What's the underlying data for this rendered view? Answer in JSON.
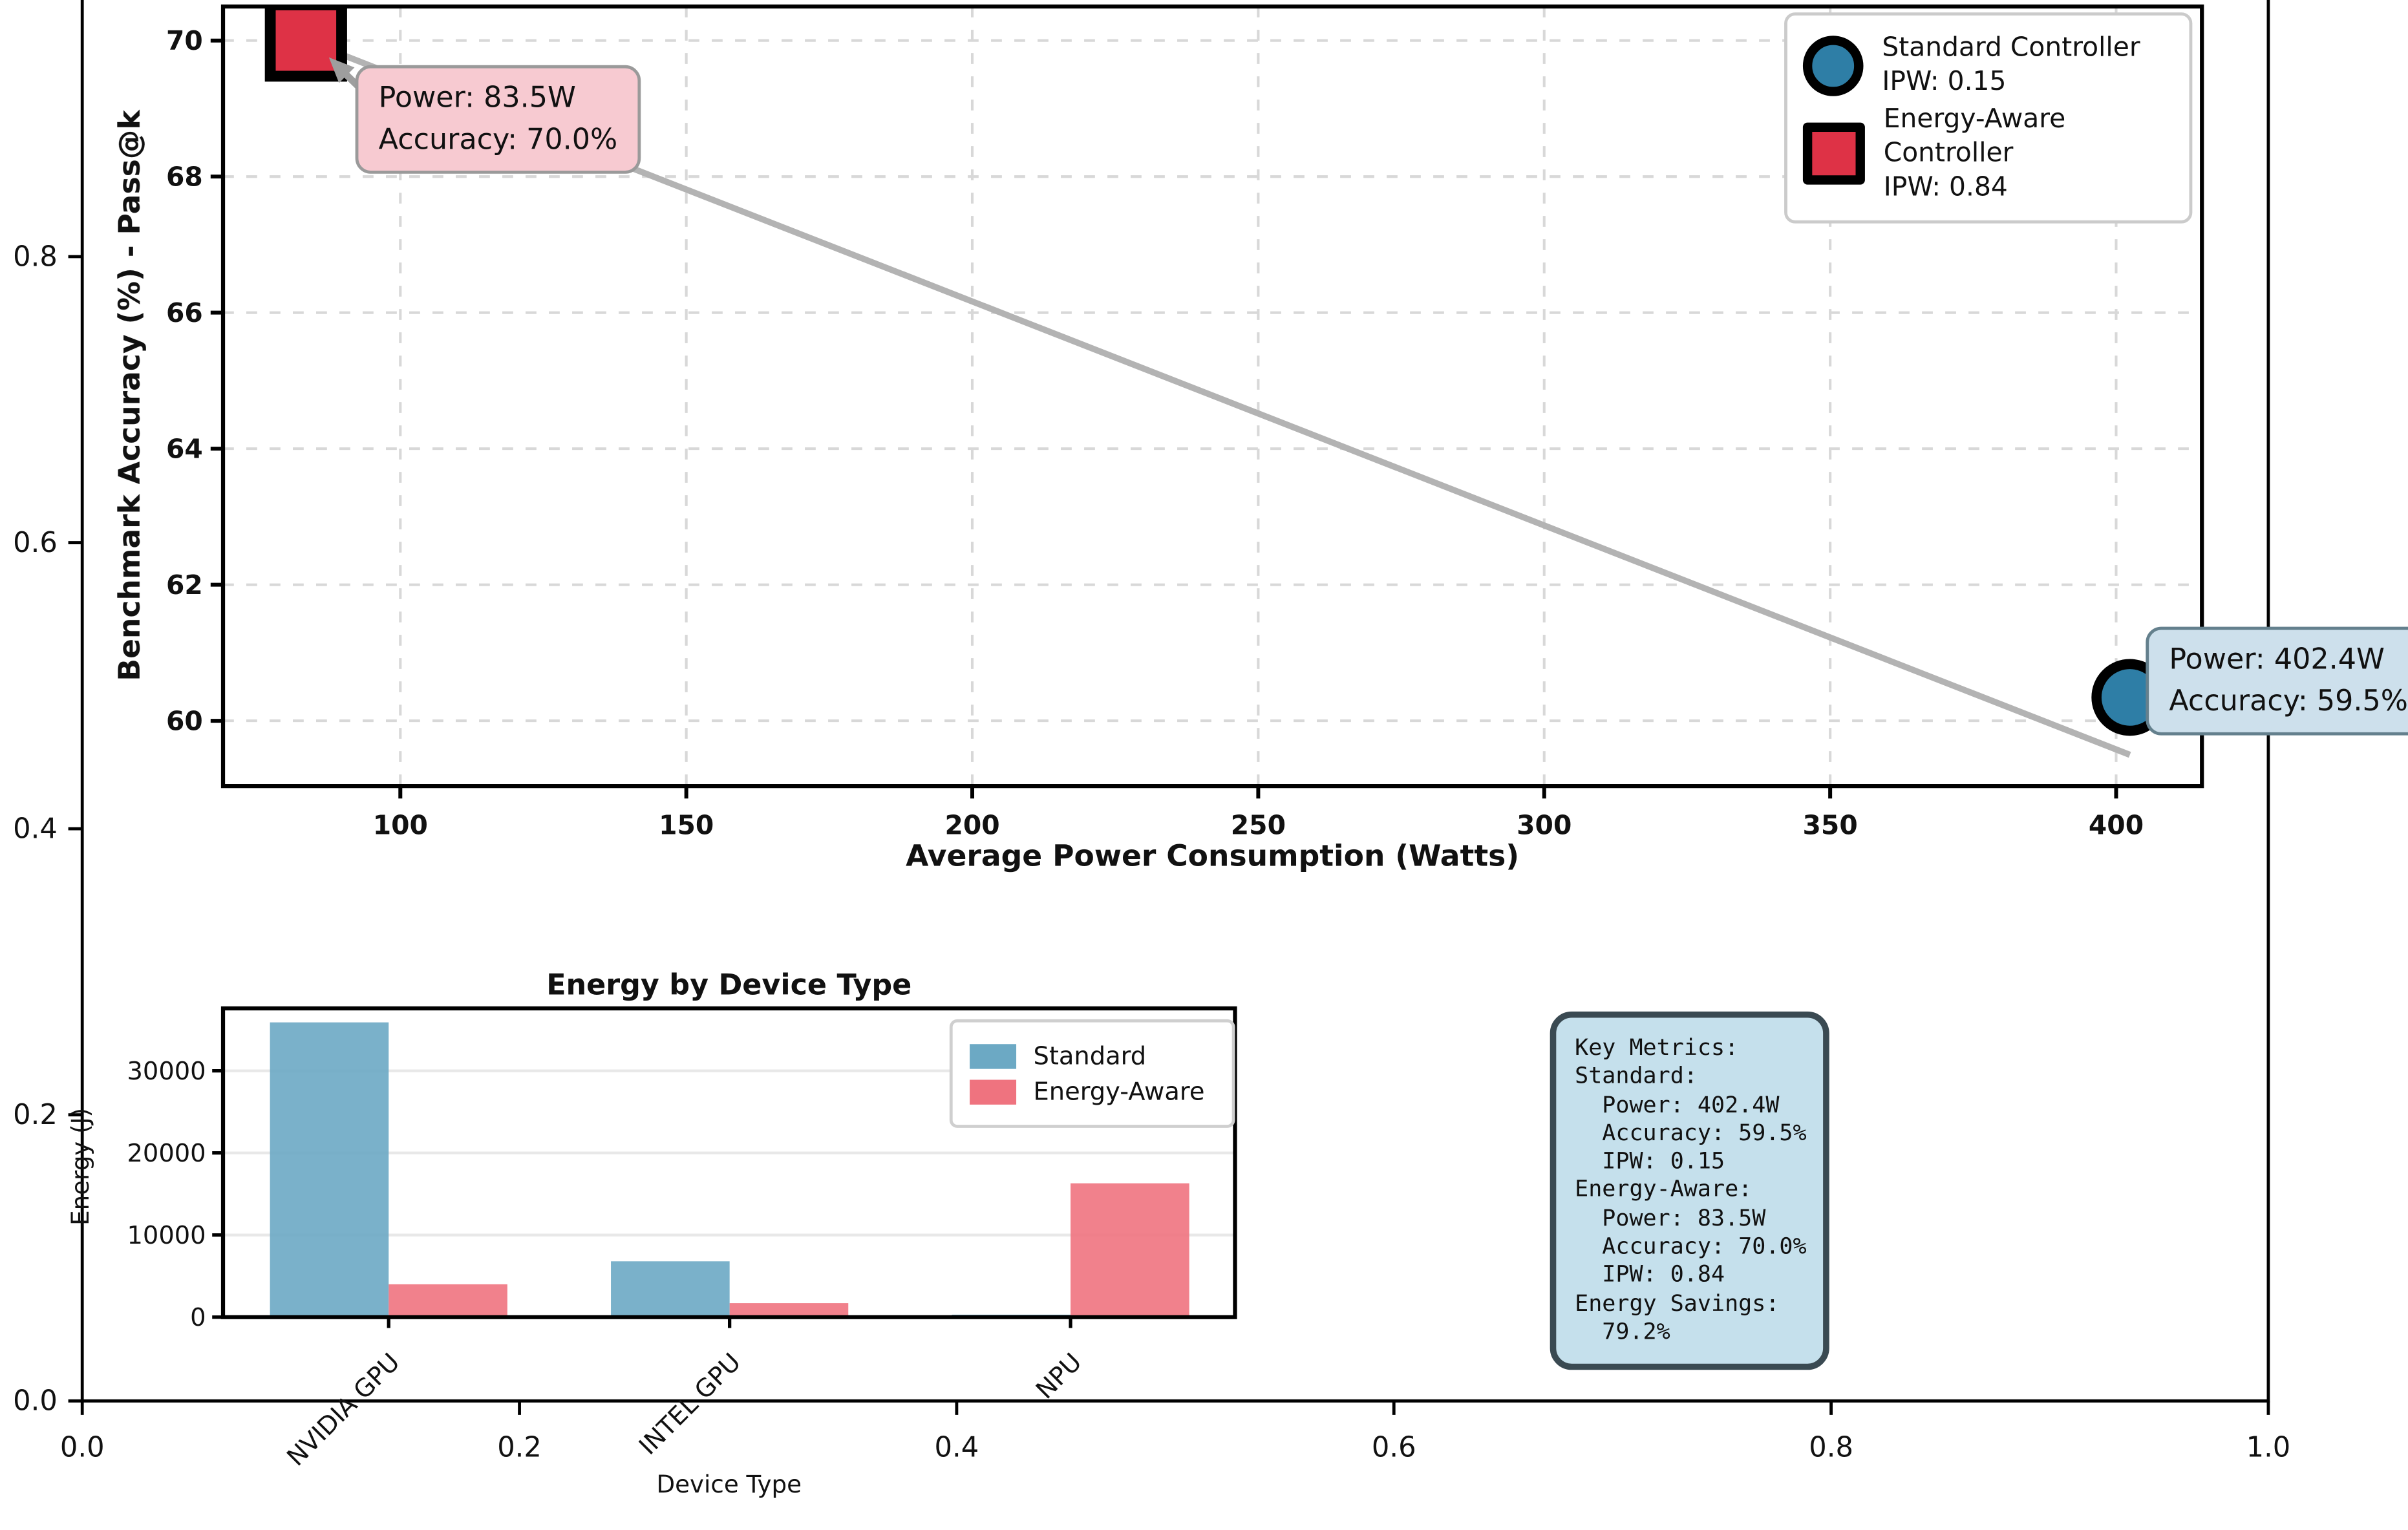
{
  "colors": {
    "scatter_standard": "#2E7EA6",
    "scatter_energy_aware": "#DE3246",
    "bar_standard": "#6CA9C4",
    "bar_energy_aware": "#EF737F",
    "trend_line": "#b3b3b3",
    "arrow": "#9e9e9e",
    "scatter_grid": "#d8d8d8",
    "bar_grid": "#e8e8e8",
    "annotation_pink_bg": "#F7CAD1",
    "annotation_blue_bg": "#CDE0EC",
    "metrics_bg": "#C5E0EC",
    "metrics_border": "#3A4A52"
  },
  "outer_axes": {
    "x_tick_labels": [
      "0.0",
      "0.2",
      "0.4",
      "0.6",
      "0.8",
      "1.0"
    ],
    "y_tick_labels": [
      "0.0",
      "0.2",
      "0.4",
      "0.6",
      "0.8"
    ]
  },
  "chart_data": [
    {
      "type": "scatter",
      "xlabel": "Average Power Consumption (Watts)",
      "ylabel": "Benchmark Accuracy (%) - Pass@k",
      "x_ticks": [
        100,
        150,
        200,
        250,
        300,
        350,
        400
      ],
      "y_ticks": [
        60,
        62,
        64,
        66,
        68,
        70
      ],
      "xlim": [
        69,
        415
      ],
      "ylim": [
        59.04,
        70.5
      ],
      "grid": true,
      "legend_position": "upper right",
      "series": [
        {
          "name": "Standard Controller",
          "ipw": 0.15,
          "marker": "circle",
          "color": "#2E7EA6",
          "points": [
            {
              "x": 402.4,
              "y": 59.5
            }
          ]
        },
        {
          "name": "Energy-Aware Controller",
          "ipw": 0.84,
          "marker": "square",
          "color": "#DE3246",
          "points": [
            {
              "x": 83.5,
              "y": 70.0
            }
          ]
        }
      ],
      "trend_line": {
        "x1": 83.5,
        "y1": 70.0,
        "x2": 402.4,
        "y2": 59.5
      }
    },
    {
      "type": "bar",
      "title": "Energy by Device Type",
      "xlabel": "Device Type",
      "ylabel": "Energy (J)",
      "categories": [
        "NVIDIA GPU",
        "INTEL GPU",
        "NPU"
      ],
      "series": [
        {
          "name": "Standard",
          "color": "#6CA9C4",
          "values": [
            35900,
            6800,
            300
          ]
        },
        {
          "name": "Energy-Aware",
          "color": "#EF737F",
          "values": [
            4000,
            1700,
            16300
          ]
        }
      ],
      "y_ticks": [
        0,
        10000,
        20000,
        30000
      ],
      "ylim": [
        0,
        37600
      ],
      "grid": true,
      "legend_position": "upper right"
    }
  ],
  "scatter_legend": {
    "entries": [
      {
        "label": "Standard Controller",
        "sub": "IPW: 0.15"
      },
      {
        "label": "Energy-Aware Controller",
        "sub": "IPW: 0.84"
      }
    ]
  },
  "annotations": {
    "energy_aware": {
      "line1": "Power: 83.5W",
      "line2": "Accuracy: 70.0%"
    },
    "standard": {
      "line1": "Power: 402.4W",
      "line2": "Accuracy: 59.5%"
    }
  },
  "key_metrics": {
    "lines": [
      "Key Metrics:",
      "",
      "Standard:",
      "  Power: 402.4W",
      "  Accuracy: 59.5%",
      "  IPW: 0.15",
      "",
      "Energy-Aware:",
      "  Power: 83.5W",
      "  Accuracy: 70.0%",
      "  IPW: 0.84",
      "",
      "Energy Savings:",
      "  79.2%"
    ]
  }
}
